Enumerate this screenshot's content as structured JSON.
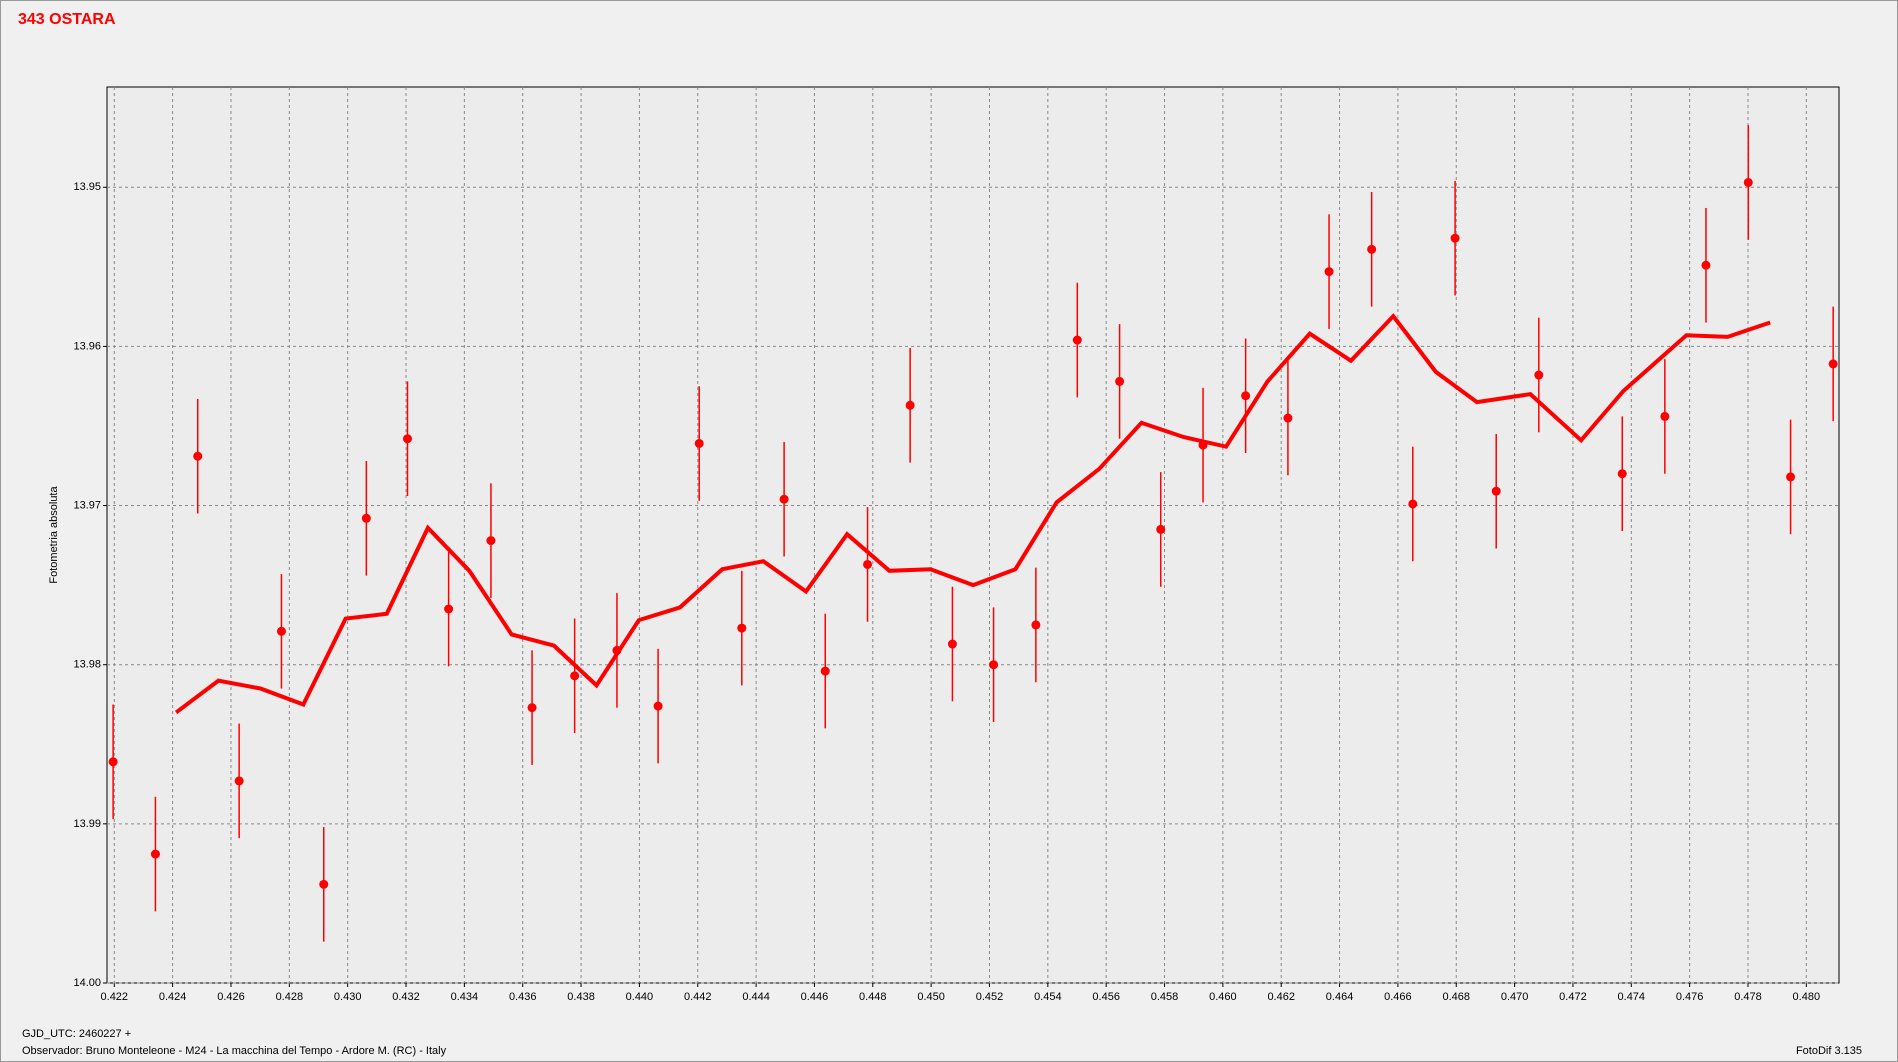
{
  "chart_data": {
    "type": "scatter",
    "title": "343 OSTARA",
    "y_label": "Fotometria absoluta",
    "x_note": "GJD_UTC: 2460227 +",
    "footer": "Observador: Bruno Monteleone - M24 - La macchina del Tempo - Ardore M. (RC) - Italy",
    "software": "FotoDif 3.135",
    "xlim": [
      0.42175,
      0.48112
    ],
    "ylim": [
      14.0,
      13.9437
    ],
    "grid": true,
    "xticks": [
      0.422,
      0.424,
      0.426,
      0.428,
      {
        "value": 0.43,
        "label": "0.430"
      },
      0.432,
      0.434,
      0.436,
      0.438,
      {
        "value": 0.44,
        "label": "0.440"
      },
      0.442,
      0.444,
      0.446,
      0.448,
      {
        "value": 0.45,
        "label": "0.450"
      },
      0.452,
      0.454,
      0.456,
      0.458,
      {
        "value": 0.46,
        "label": "0.460"
      },
      0.462,
      0.464,
      0.466,
      0.468,
      {
        "value": 0.47,
        "label": "0.470"
      },
      0.472,
      0.474,
      0.476,
      0.478,
      {
        "value": 0.48,
        "label": "0.480"
      }
    ],
    "yticks": [
      13.95,
      13.96,
      13.97,
      13.98,
      13.99,
      {
        "value": 14.0,
        "label": "14.00"
      }
    ],
    "series": [
      {
        "type": "errorbar",
        "color": "#ff0000",
        "x": [
          0.42196,
          0.42341,
          0.42486,
          0.42628,
          0.42773,
          0.42918,
          0.43064,
          0.43205,
          0.43346,
          0.43491,
          0.43632,
          0.43778,
          0.43923,
          0.44064,
          0.44205,
          0.44351,
          0.44496,
          0.44637,
          0.44782,
          0.44928,
          0.45073,
          0.45214,
          0.45359,
          0.45501,
          0.45646,
          0.45787,
          0.45932,
          0.46078,
          0.46223,
          0.46364,
          0.4651,
          0.46651,
          0.46796,
          0.46937,
          0.47083,
          0.47369,
          0.47515,
          0.47656,
          0.47801,
          0.47946,
          0.48092
        ],
        "values": [
          13.9861,
          13.9919,
          13.9669,
          13.9873,
          13.9779,
          13.9938,
          13.9708,
          13.9658,
          13.9765,
          13.9722,
          13.9827,
          13.9807,
          13.9791,
          13.9826,
          13.9661,
          13.9777,
          13.9696,
          13.9804,
          13.9737,
          13.9637,
          13.9787,
          13.98,
          13.9775,
          13.9596,
          13.9622,
          13.9715,
          13.9662,
          13.9631,
          13.9645,
          13.9553,
          13.9539,
          13.9699,
          13.9532,
          13.9691,
          13.9618,
          13.968,
          13.9644,
          13.9549,
          13.9497,
          13.9682,
          13.9611
        ],
        "errors": [
          0.0036,
          0.0036,
          0.0036,
          0.0036,
          0.0036,
          0.0036,
          0.0036,
          0.0036,
          0.0036,
          0.0036,
          0.0036,
          0.0036,
          0.0036,
          0.0036,
          0.0036,
          0.0036,
          0.0036,
          0.0036,
          0.0036,
          0.0036,
          0.0036,
          0.0036,
          0.0036,
          0.0036,
          0.0036,
          0.0036,
          0.0036,
          0.0036,
          0.0036,
          0.0036,
          0.0036,
          0.0036,
          0.0036,
          0.0036,
          0.0036,
          0.0036,
          0.0036,
          0.0036,
          0.0036,
          0.0036,
          0.0036
        ]
      },
      {
        "type": "line",
        "color": "#ff0000",
        "x": [
          0.42412,
          0.42557,
          0.42702,
          0.42848,
          0.42993,
          0.43134,
          0.43275,
          0.43417,
          0.43562,
          0.43707,
          0.43853,
          0.43998,
          0.44139,
          0.44284,
          0.44425,
          0.44571,
          0.44712,
          0.44857,
          0.44998,
          0.45144,
          0.45289,
          0.4543,
          0.45576,
          0.45721,
          0.45866,
          0.46011,
          0.46153,
          0.46298,
          0.46439,
          0.46584,
          0.4673,
          0.46871,
          0.47054,
          0.47228,
          0.47373,
          0.47589,
          0.4773,
          0.47876
        ],
        "values": [
          13.983,
          13.981,
          13.9815,
          13.9825,
          13.9771,
          13.9768,
          13.9714,
          13.9741,
          13.9781,
          13.9788,
          13.9813,
          13.9772,
          13.9764,
          13.974,
          13.9735,
          13.9754,
          13.9718,
          13.9741,
          13.974,
          13.975,
          13.974,
          13.9698,
          13.9677,
          13.9648,
          13.9657,
          13.9663,
          13.9622,
          13.9592,
          13.9609,
          13.9581,
          13.9616,
          13.9635,
          13.963,
          13.9659,
          13.9628,
          13.9593,
          13.9594,
          13.9585
        ]
      }
    ]
  }
}
